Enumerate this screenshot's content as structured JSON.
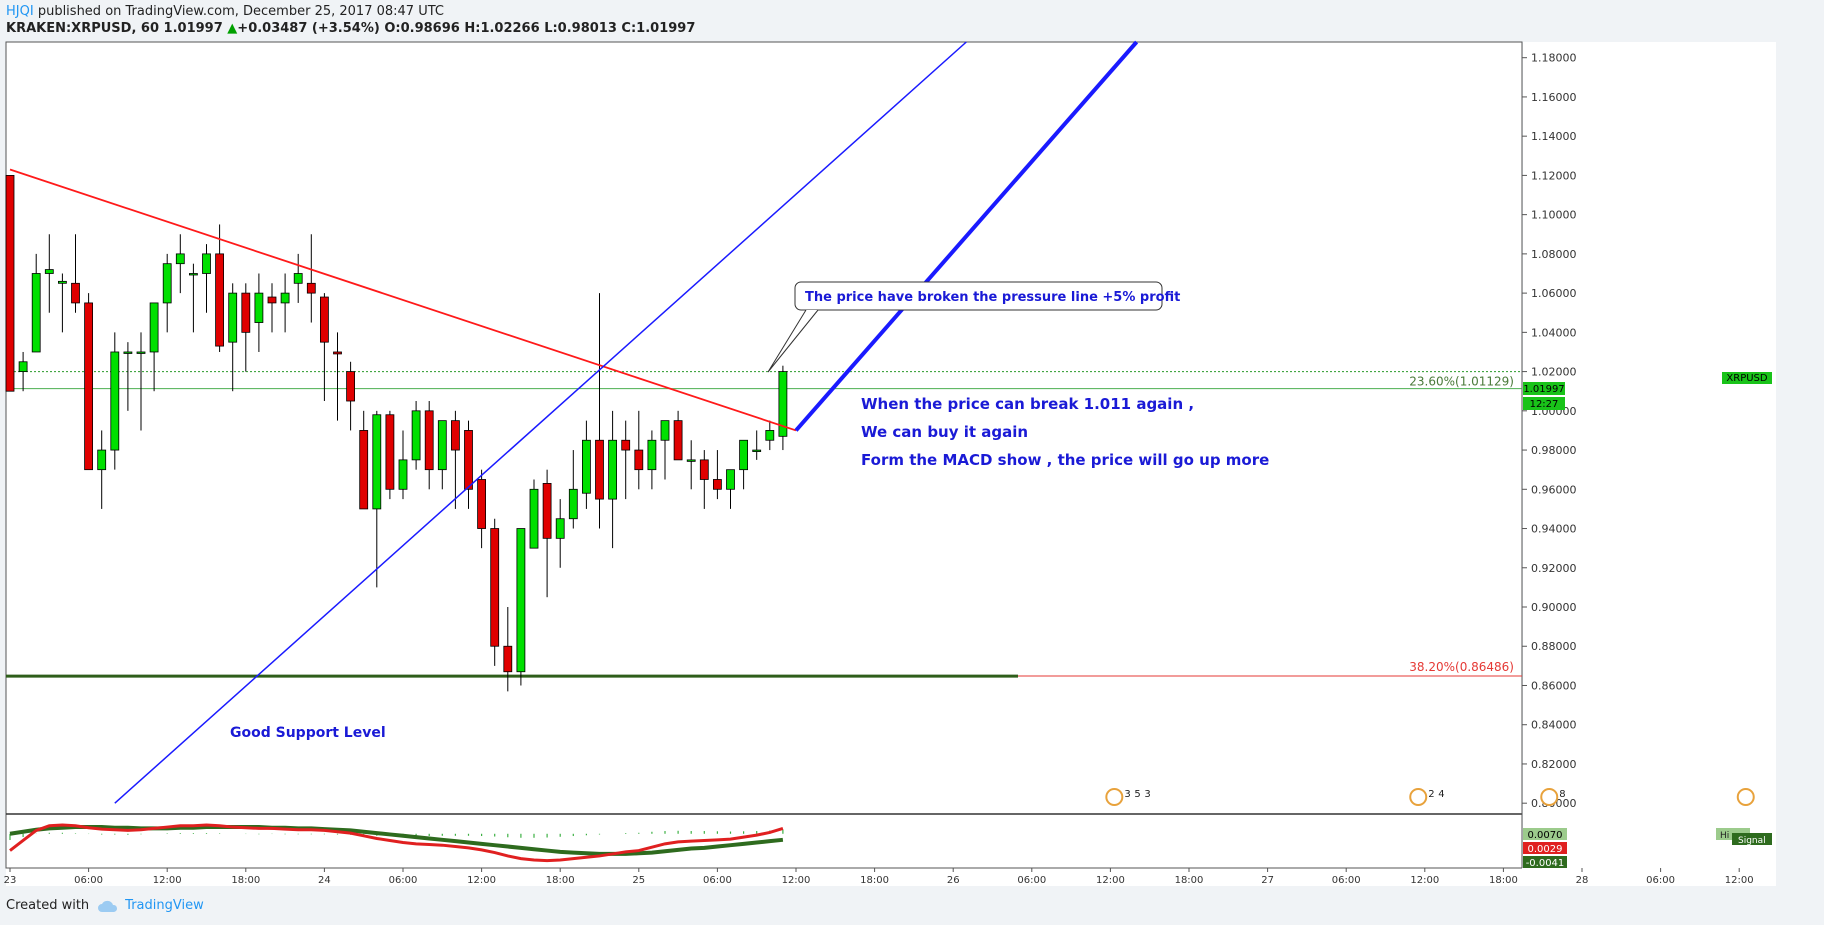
{
  "header": {
    "author": "HJQI",
    "published": "published on TradingView.com, December 25, 2017 08:47 UTC",
    "symbol": "KRAKEN:XRPUSD, 60",
    "last": "1.01997",
    "change_arrow": "▲",
    "change": "+0.03487 (+3.54%)",
    "o_label": "O:",
    "o": "0.98696",
    "h_label": "H:",
    "h": "1.02266",
    "l_label": "L:",
    "l": "0.98013",
    "c_label": "C:",
    "c": "1.01997"
  },
  "footer": {
    "created_with": "Created with",
    "brand": "TradingView"
  },
  "colors": {
    "up": "#00e000",
    "down": "#e00000",
    "trend_red": "#ff1a1a",
    "trend_blue": "#1a1aff",
    "support": "#2e5e1a",
    "fib_green": "#4caf50",
    "fib_red": "#e53935",
    "text_blue": "#1a1ad6"
  },
  "chart_data": {
    "type": "candlestick",
    "symbol": "KRAKEN:XRPUSD",
    "interval": "60",
    "y_ticks": [
      "1.18000",
      "1.16000",
      "1.14000",
      "1.12000",
      "1.10000",
      "1.08000",
      "1.06000",
      "1.04000",
      "1.02000",
      "1.00000",
      "0.98000",
      "0.96000",
      "0.94000",
      "0.92000",
      "0.90000",
      "0.88000",
      "0.86000",
      "0.84000",
      "0.82000",
      "0.80000"
    ],
    "ylim": [
      0.795,
      1.188
    ],
    "x_ticks": [
      "23",
      "06:00",
      "12:00",
      "18:00",
      "24",
      "06:00",
      "12:00",
      "18:00",
      "25",
      "06:00",
      "12:00",
      "18:00",
      "26",
      "06:00",
      "12:00",
      "18:00",
      "27",
      "06:00",
      "12:00",
      "18:00",
      "28",
      "06:00",
      "12:00"
    ],
    "x_tick_bars": [
      0,
      6,
      12,
      18,
      24,
      30,
      36,
      42,
      48,
      54,
      60,
      66,
      72,
      78,
      84,
      90,
      96,
      102,
      108,
      114,
      120,
      126,
      132
    ],
    "candles": [
      [
        1.12,
        1.12,
        1.01,
        1.01
      ],
      [
        1.02,
        1.03,
        1.01,
        1.025
      ],
      [
        1.03,
        1.08,
        1.03,
        1.07
      ],
      [
        1.07,
        1.09,
        1.05,
        1.072
      ],
      [
        1.065,
        1.07,
        1.04,
        1.066
      ],
      [
        1.065,
        1.09,
        1.05,
        1.055
      ],
      [
        1.055,
        1.06,
        0.97,
        0.97
      ],
      [
        0.97,
        0.99,
        0.95,
        0.98
      ],
      [
        0.98,
        1.04,
        0.97,
        1.03
      ],
      [
        1.03,
        1.035,
        1.0,
        1.03
      ],
      [
        1.03,
        1.04,
        0.99,
        1.03
      ],
      [
        1.03,
        1.055,
        1.01,
        1.055
      ],
      [
        1.055,
        1.08,
        1.04,
        1.075
      ],
      [
        1.075,
        1.09,
        1.06,
        1.08
      ],
      [
        1.07,
        1.075,
        1.04,
        1.07
      ],
      [
        1.07,
        1.085,
        1.05,
        1.08
      ],
      [
        1.08,
        1.095,
        1.03,
        1.033
      ],
      [
        1.035,
        1.065,
        1.01,
        1.06
      ],
      [
        1.06,
        1.065,
        1.02,
        1.04
      ],
      [
        1.045,
        1.07,
        1.03,
        1.06
      ],
      [
        1.058,
        1.065,
        1.04,
        1.055
      ],
      [
        1.055,
        1.07,
        1.04,
        1.06
      ],
      [
        1.065,
        1.08,
        1.055,
        1.07
      ],
      [
        1.065,
        1.09,
        1.045,
        1.06
      ],
      [
        1.058,
        1.06,
        1.005,
        1.035
      ],
      [
        1.03,
        1.04,
        0.995,
        1.029
      ],
      [
        1.02,
        1.025,
        0.99,
        1.005
      ],
      [
        0.99,
        1.0,
        0.95,
        0.95
      ],
      [
        0.95,
        1.0,
        0.91,
        0.998
      ],
      [
        0.998,
        1.0,
        0.955,
        0.96
      ],
      [
        0.96,
        0.99,
        0.955,
        0.975
      ],
      [
        0.975,
        1.005,
        0.97,
        1.0
      ],
      [
        1.0,
        1.005,
        0.96,
        0.97
      ],
      [
        0.97,
        0.995,
        0.96,
        0.995
      ],
      [
        0.995,
        1.0,
        0.95,
        0.98
      ],
      [
        0.99,
        0.995,
        0.95,
        0.96
      ],
      [
        0.965,
        0.97,
        0.93,
        0.94
      ],
      [
        0.94,
        0.945,
        0.87,
        0.88
      ],
      [
        0.88,
        0.9,
        0.857,
        0.867
      ],
      [
        0.867,
        0.94,
        0.86,
        0.94
      ],
      [
        0.93,
        0.965,
        0.93,
        0.96
      ],
      [
        0.963,
        0.97,
        0.905,
        0.935
      ],
      [
        0.935,
        0.955,
        0.92,
        0.945
      ],
      [
        0.945,
        0.98,
        0.94,
        0.96
      ],
      [
        0.958,
        0.995,
        0.95,
        0.985
      ],
      [
        0.985,
        1.06,
        0.94,
        0.955
      ],
      [
        0.955,
        1.0,
        0.93,
        0.985
      ],
      [
        0.985,
        0.995,
        0.955,
        0.98
      ],
      [
        0.98,
        1.0,
        0.96,
        0.97
      ],
      [
        0.97,
        0.99,
        0.96,
        0.985
      ],
      [
        0.985,
        0.995,
        0.965,
        0.995
      ],
      [
        0.995,
        1.0,
        0.975,
        0.975
      ],
      [
        0.975,
        0.985,
        0.96,
        0.975
      ],
      [
        0.975,
        0.98,
        0.95,
        0.965
      ],
      [
        0.965,
        0.98,
        0.955,
        0.96
      ],
      [
        0.96,
        0.97,
        0.95,
        0.97
      ],
      [
        0.97,
        0.985,
        0.96,
        0.985
      ],
      [
        0.98,
        0.99,
        0.975,
        0.98
      ],
      [
        0.985,
        0.995,
        0.98,
        0.99
      ],
      [
        0.987,
        1.023,
        0.98,
        1.02
      ]
    ],
    "series_label": "XRPUSD",
    "last_price": "1.01997",
    "countdown": "12:27",
    "trend_lines": [
      {
        "name": "pressure-line",
        "color": "#ff1a1a",
        "from": [
          0,
          1.123
        ],
        "to": [
          60,
          0.99
        ]
      },
      {
        "name": "channel-line-thin",
        "color": "#1a1aff",
        "from": [
          8,
          0.8
        ],
        "to": [
          73,
          1.188
        ]
      },
      {
        "name": "channel-line-thick",
        "color": "#1a1aff",
        "from": [
          60,
          0.99
        ],
        "to": [
          86,
          1.188
        ]
      }
    ],
    "support_level": {
      "value": 0.8648,
      "label": "Good Support Level"
    },
    "fib_levels": [
      {
        "label": "23.60%(1.01129)",
        "value": 1.01129
      },
      {
        "label": "38.20%(0.86486)",
        "value": 0.86486
      }
    ],
    "annotations": [
      "The price have broken the pressure line +5% profit",
      "When the price can break 1.011 again ,",
      "We can buy it again",
      "Form the MACD show , the price will go up more"
    ],
    "macd": {
      "labels": [
        "0.0070",
        "0.0029",
        "-0.0041"
      ],
      "signal_label": "Signal",
      "hist_label": "Hi",
      "macd_line": [
        -0.0025,
        -0.001,
        0.0005,
        0.0012,
        0.0013,
        0.0012,
        0.0009,
        0.0007,
        0.0006,
        0.0005,
        0.0006,
        0.0008,
        0.001,
        0.0012,
        0.0012,
        0.0013,
        0.0012,
        0.001,
        0.0009,
        0.0008,
        0.0008,
        0.0007,
        0.0006,
        0.0006,
        0.0005,
        0.0003,
        0.0001,
        -0.0003,
        -0.0007,
        -0.001,
        -0.0013,
        -0.0015,
        -0.0016,
        -0.0017,
        -0.0019,
        -0.0021,
        -0.0024,
        -0.0028,
        -0.0033,
        -0.0037,
        -0.0039,
        -0.004,
        -0.0039,
        -0.0037,
        -0.0035,
        -0.0033,
        -0.003,
        -0.0027,
        -0.0025,
        -0.002,
        -0.0015,
        -0.0012,
        -0.0011,
        -0.001,
        -0.0009,
        -0.0008,
        -0.0005,
        -0.0002,
        0.0002,
        0.0008
      ],
      "signal_line": [
        0.0,
        0.0003,
        0.0006,
        0.0008,
        0.0009,
        0.001,
        0.001,
        0.001,
        0.0009,
        0.0009,
        0.0008,
        0.0008,
        0.0008,
        0.0009,
        0.0009,
        0.001,
        0.001,
        0.001,
        0.001,
        0.001,
        0.0009,
        0.0009,
        0.0008,
        0.0008,
        0.0007,
        0.0006,
        0.0005,
        0.0003,
        0.0001,
        -0.0001,
        -0.0003,
        -0.0005,
        -0.0007,
        -0.0009,
        -0.0011,
        -0.0013,
        -0.0015,
        -0.0017,
        -0.0019,
        -0.0021,
        -0.0023,
        -0.0025,
        -0.0027,
        -0.0028,
        -0.0029,
        -0.003,
        -0.003,
        -0.003,
        -0.0029,
        -0.0028,
        -0.0026,
        -0.0024,
        -0.0022,
        -0.0021,
        -0.0019,
        -0.0017,
        -0.0015,
        -0.0013,
        -0.0011,
        -0.0009
      ]
    },
    "events": [
      {
        "bar": 84.3,
        "badges": [
          "3",
          "5",
          "3"
        ]
      },
      {
        "bar": 107.5,
        "badges": [
          "2",
          "4"
        ]
      },
      {
        "bar": 117.5,
        "badges": [
          "8"
        ]
      },
      {
        "bar": 132.5,
        "badges": []
      }
    ]
  }
}
